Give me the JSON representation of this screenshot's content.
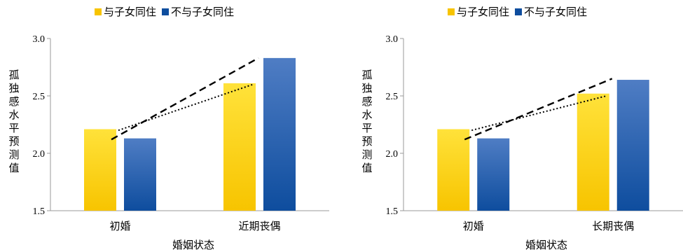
{
  "chart_data": [
    {
      "type": "bar",
      "categories": [
        "初婚",
        "近期丧偶"
      ],
      "series": [
        {
          "name": "与子女同住",
          "values": [
            2.21,
            2.61
          ]
        },
        {
          "name": "不与子女同住",
          "values": [
            2.13,
            2.83
          ]
        }
      ],
      "trend_lines": [
        {
          "series": "与子女同住",
          "style": "dotted",
          "from": 2.2,
          "to": 2.6
        },
        {
          "series": "不与子女同住",
          "style": "dashed",
          "from": 2.12,
          "to": 2.83
        }
      ],
      "xlabel": "婚姻状态",
      "ylabel": "孤独感水平预测值",
      "ylim": [
        1.5,
        3.0
      ],
      "yticks": [
        "1.5",
        "2.0",
        "2.5",
        "3.0"
      ],
      "grid": false,
      "legend": "top"
    },
    {
      "type": "bar",
      "categories": [
        "初婚",
        "长期丧偶"
      ],
      "series": [
        {
          "name": "与子女同住",
          "values": [
            2.21,
            2.52
          ]
        },
        {
          "name": "不与子女同住",
          "values": [
            2.13,
            2.64
          ]
        }
      ],
      "trend_lines": [
        {
          "series": "与子女同住",
          "style": "dotted",
          "from": 2.2,
          "to": 2.5
        },
        {
          "series": "不与子女同住",
          "style": "dashed",
          "from": 2.12,
          "to": 2.65
        }
      ],
      "xlabel": "婚姻状态",
      "ylabel": "孤独感水平预测值",
      "ylim": [
        1.5,
        3.0
      ],
      "yticks": [
        "1.5",
        "2.0",
        "2.5",
        "3.0"
      ],
      "grid": false,
      "legend": "top"
    }
  ],
  "colors": {
    "series_a_top": "#FFE23A",
    "series_a_bottom": "#F7C400",
    "series_b_top": "#4F7DC4",
    "series_b_bottom": "#0E4D9E",
    "axis": "#9a9a9a"
  }
}
